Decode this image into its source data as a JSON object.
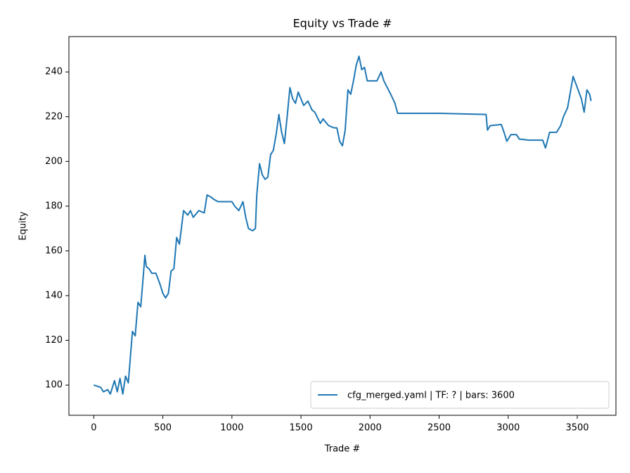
{
  "chart_data": {
    "type": "line",
    "title": "Equity vs Trade #",
    "x_label": "Trade #",
    "y_label": "Equity",
    "x": [
      0,
      50,
      70,
      100,
      120,
      150,
      170,
      190,
      210,
      230,
      250,
      280,
      300,
      320,
      340,
      360,
      370,
      380,
      400,
      420,
      450,
      480,
      500,
      520,
      540,
      560,
      580,
      600,
      620,
      650,
      680,
      700,
      720,
      760,
      800,
      820,
      850,
      870,
      900,
      950,
      1000,
      1020,
      1050,
      1080,
      1100,
      1120,
      1150,
      1170,
      1180,
      1200,
      1220,
      1240,
      1260,
      1280,
      1300,
      1320,
      1340,
      1360,
      1380,
      1400,
      1420,
      1440,
      1460,
      1480,
      1500,
      1520,
      1550,
      1580,
      1600,
      1640,
      1660,
      1700,
      1740,
      1760,
      1780,
      1800,
      1820,
      1840,
      1860,
      1880,
      1900,
      1920,
      1940,
      1960,
      1980,
      2000,
      2050,
      2080,
      2100,
      2150,
      2180,
      2200,
      2500,
      2840,
      2850,
      2870,
      2950,
      2970,
      2990,
      3020,
      3060,
      3080,
      3150,
      3250,
      3270,
      3300,
      3350,
      3380,
      3400,
      3430,
      3450,
      3470,
      3500,
      3530,
      3550,
      3570,
      3590,
      3600
    ],
    "series": [
      {
        "name": "cfg_merged.yaml | TF: ? | bars: 3600",
        "color": "#1f77b4",
        "values": [
          100,
          99,
          97,
          98,
          96,
          102,
          97,
          103,
          96,
          104,
          101,
          124,
          122,
          137,
          135,
          150,
          158,
          153,
          152,
          150,
          150,
          145,
          141,
          139,
          141,
          151,
          152,
          166,
          163,
          178,
          176,
          178,
          175,
          178,
          177,
          185,
          184,
          183,
          182,
          182,
          182,
          180,
          178,
          182,
          175,
          170,
          169,
          170,
          185,
          199,
          194,
          192,
          193,
          203,
          205,
          212,
          221,
          213,
          208,
          220,
          233,
          228,
          226,
          231,
          228,
          225,
          227,
          223,
          222,
          217,
          219,
          216,
          215,
          215,
          209,
          207,
          214,
          232,
          230,
          236,
          243,
          247,
          241,
          242,
          236,
          236,
          236,
          240,
          236,
          230,
          226,
          221.5,
          221.5,
          221,
          214,
          216,
          216.5,
          213,
          209,
          212,
          212,
          210,
          209.5,
          209.5,
          206,
          213,
          213,
          216,
          220,
          224,
          231,
          238,
          233,
          228,
          222,
          232,
          230,
          227
        ]
      }
    ],
    "xlim": [
      -180,
      3780
    ],
    "ylim": [
      86.5,
      255.8
    ],
    "xticks": [
      0,
      500,
      1000,
      1500,
      2000,
      2500,
      3000,
      3500
    ],
    "yticks": [
      100,
      120,
      140,
      160,
      180,
      200,
      220,
      240
    ],
    "grid": false,
    "legend_position": "lower right"
  }
}
